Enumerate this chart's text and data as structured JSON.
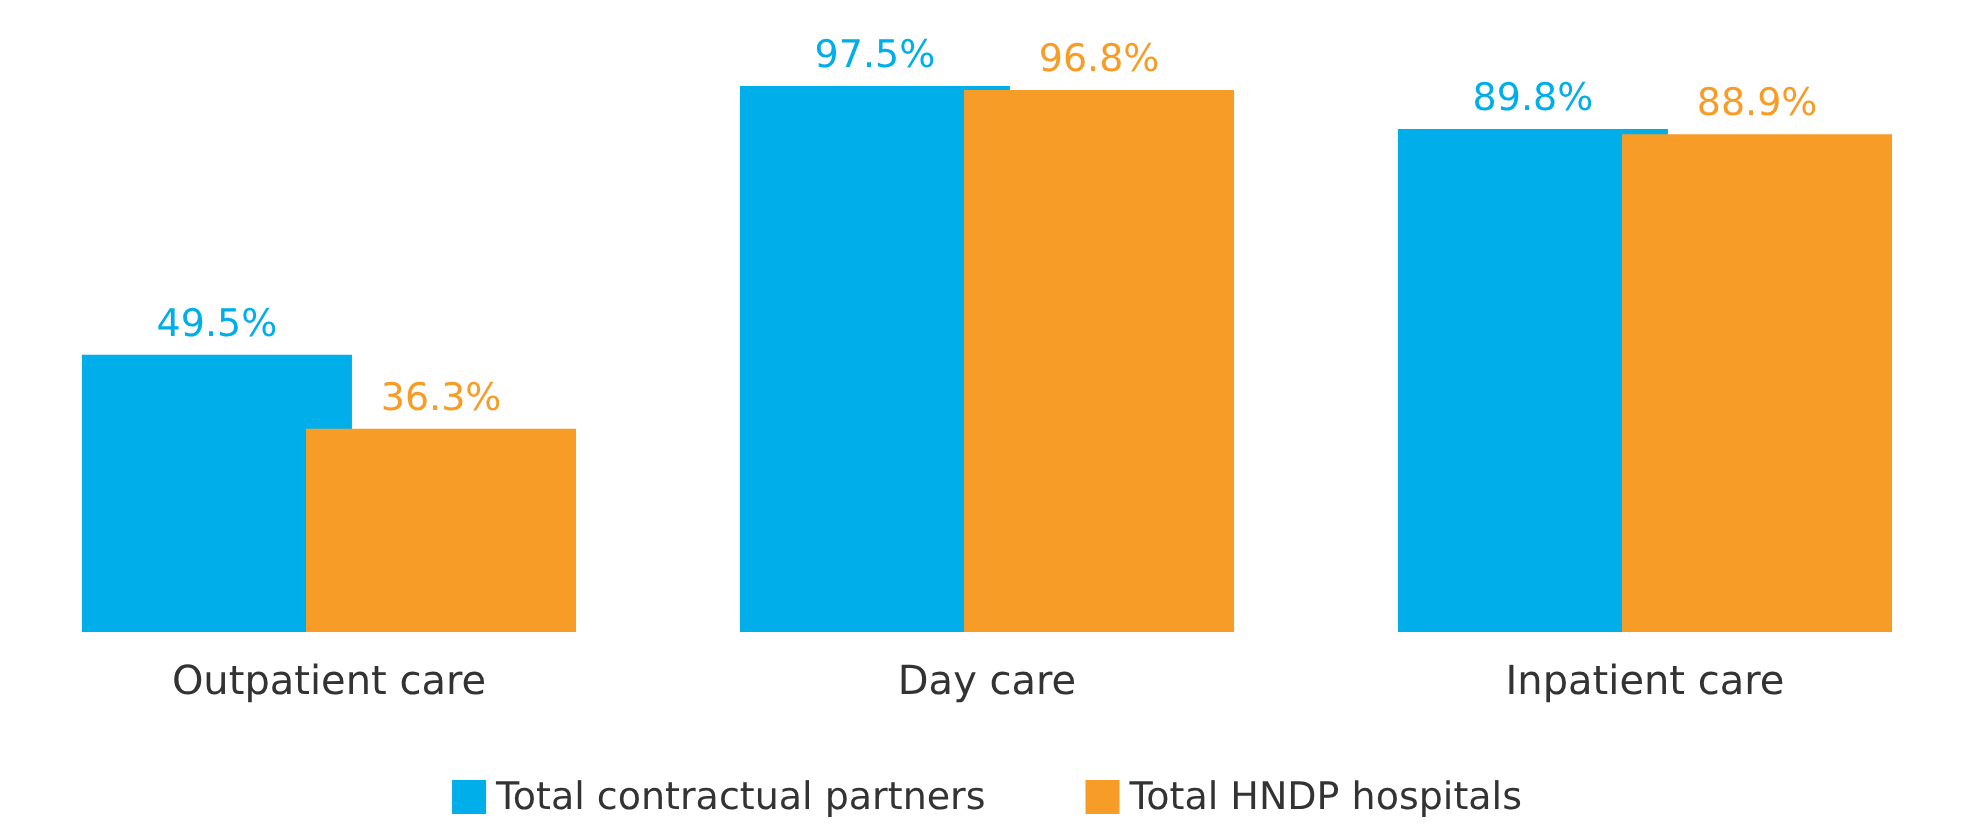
{
  "chart_data": {
    "type": "bar",
    "categories": [
      "Outpatient care",
      "Day care",
      "Inpatient care"
    ],
    "series": [
      {
        "name": "Total contractual partners",
        "color": "#00aee9",
        "values": [
          49.5,
          97.5,
          89.8
        ],
        "value_labels": [
          "49.5%",
          "97.5%",
          "89.8%"
        ]
      },
      {
        "name": "Total HNDP hospitals",
        "color": "#f79d27",
        "values": [
          36.3,
          96.8,
          88.9
        ],
        "value_labels": [
          "36.3%",
          "96.8%",
          "88.9%"
        ]
      }
    ],
    "legend": "bottom"
  }
}
